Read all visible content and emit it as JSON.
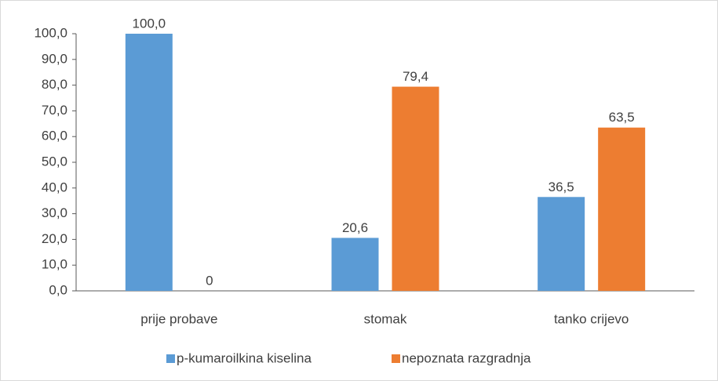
{
  "chart_data": {
    "type": "bar",
    "categories": [
      "prije probave",
      "stomak",
      "tanko crijevo"
    ],
    "series": [
      {
        "name": "p-kumaroilkina kiselina",
        "color": "#5b9bd5",
        "values": [
          100,
          20.6,
          36.5
        ],
        "value_labels": [
          "100,0",
          "20,6",
          "36,5"
        ]
      },
      {
        "name": "nepoznata razgradnja",
        "color": "#ed7d31",
        "values": [
          0,
          79.4,
          63.5
        ],
        "value_labels": [
          "0",
          "79,4",
          "63,5"
        ]
      }
    ],
    "ylim": [
      0,
      100
    ],
    "yticks": [
      {
        "value": 0,
        "label": "0,0"
      },
      {
        "value": 10,
        "label": "10,0"
      },
      {
        "value": 20,
        "label": "20,0"
      },
      {
        "value": 30,
        "label": "30,0"
      },
      {
        "value": 40,
        "label": "40,0"
      },
      {
        "value": 50,
        "label": "50,0"
      },
      {
        "value": 60,
        "label": "60,0"
      },
      {
        "value": 70,
        "label": "70,0"
      },
      {
        "value": 80,
        "label": "80,0"
      },
      {
        "value": 90,
        "label": "90,0"
      },
      {
        "value": 100,
        "label": "100,0"
      }
    ],
    "grid": false,
    "legend": "bottom"
  }
}
